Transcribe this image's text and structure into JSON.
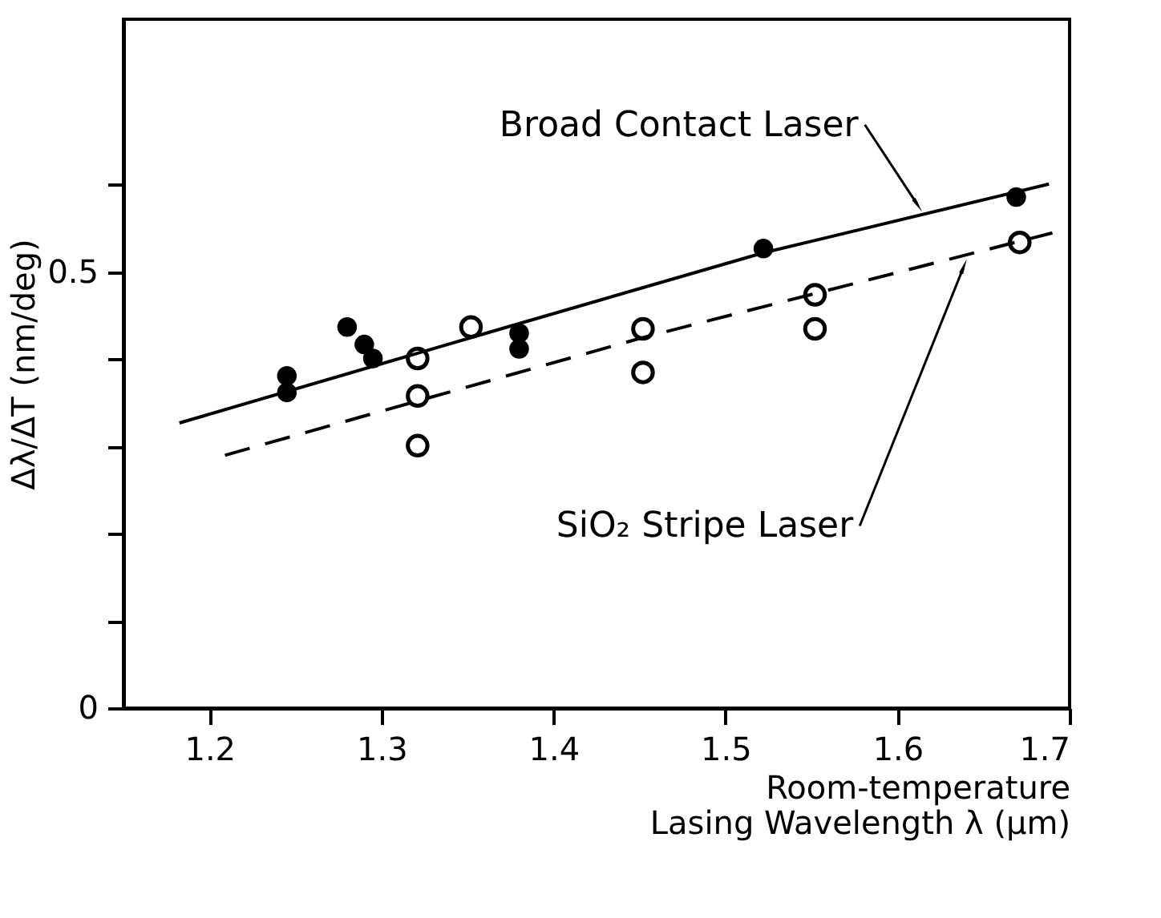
{
  "chart_data": {
    "type": "scatter",
    "xlabel": "Room-temperature\nLasing Wavelength λ (μm)",
    "ylabel": "Δλ/ΔT  (nm/deg)",
    "xlim": [
      1.15,
      1.7
    ],
    "ylim": [
      0,
      0.79
    ],
    "xticks": [
      1.2,
      1.3,
      1.4,
      1.5,
      1.6,
      1.7
    ],
    "yticks": [
      {
        "value": 0,
        "label": "0"
      },
      {
        "value": 0.1,
        "label": null
      },
      {
        "value": 0.2,
        "label": null
      },
      {
        "value": 0.3,
        "label": null
      },
      {
        "value": 0.4,
        "label": null
      },
      {
        "value": 0.5,
        "label": "0.5"
      },
      {
        "value": 0.6,
        "label": null
      }
    ],
    "grid": false,
    "marker": "circle",
    "series": [
      {
        "type": "scatter",
        "color": "#000000",
        "x": [
          1.245,
          1.245,
          1.28,
          1.29,
          1.295,
          1.38,
          1.38,
          1.522,
          1.669
        ],
        "values": [
          0.381,
          0.362,
          0.437,
          0.417,
          0.401,
          0.43,
          0.412,
          0.527,
          0.586
        ]
      },
      {
        "type": "scatter",
        "color": "#000000",
        "x": [
          1.321,
          1.321,
          1.321,
          1.352,
          1.452,
          1.452,
          1.552,
          1.552,
          1.671
        ],
        "values": [
          0.401,
          0.358,
          0.301,
          0.437,
          0.435,
          0.385,
          0.474,
          0.435,
          0.534
        ]
      },
      {
        "type": "line",
        "color": "#000000",
        "line_style": "solid",
        "marker": "none",
        "x": [
          1.1825,
          1.3695,
          1.5217,
          1.688
        ],
        "values": [
          0.327,
          0.435,
          0.522,
          0.601
        ]
      },
      {
        "type": "line",
        "color": "#000000",
        "line_style": "dashed",
        "marker": "none",
        "x": [
          1.209,
          1.452,
          1.69
        ],
        "values": [
          0.29,
          0.425,
          0.545
        ]
      }
    ],
    "annotations": [
      {
        "text": "Broad Contact Laser",
        "x": 1.611,
        "y": 0.579
      },
      {
        "text": "SiO₂ Stripe Laser",
        "x": 1.638,
        "y": 0.504
      }
    ]
  }
}
